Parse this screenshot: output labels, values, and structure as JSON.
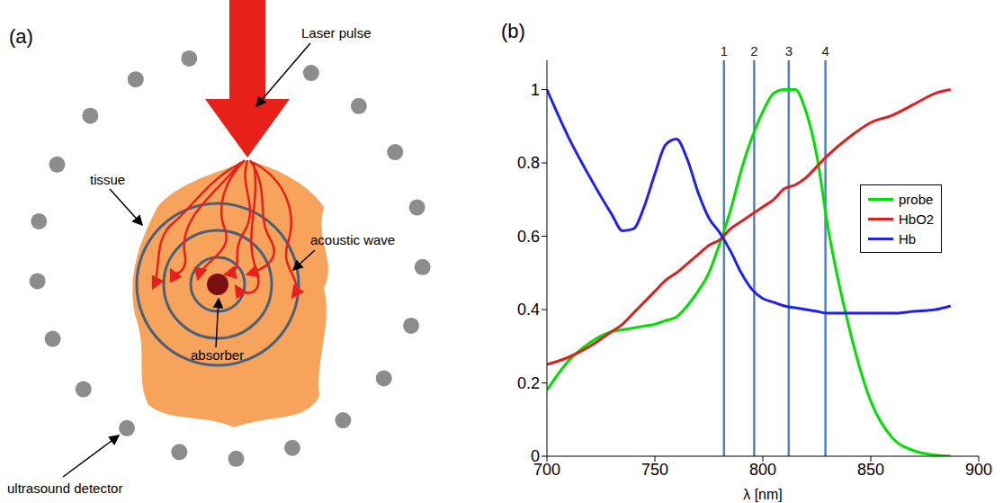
{
  "panel_a": {
    "label": "(a)",
    "labels": {
      "laser": "Laser pulse",
      "tissue": "tissue",
      "wave": "acoustic wave",
      "absorber": "absorber",
      "detector": "ultrasound detector"
    }
  },
  "chart_data": {
    "type": "line",
    "panel_label": "(b)",
    "x_label": "λ [nm]",
    "x": [
      700,
      710,
      720,
      730,
      735,
      740,
      745,
      750,
      755,
      760,
      765,
      770,
      775,
      780,
      785,
      790,
      795,
      800,
      805,
      810,
      815,
      820,
      825,
      830,
      840,
      850,
      860,
      870,
      880,
      887
    ],
    "series": [
      {
        "name": "probe",
        "color": "#00e000",
        "values": [
          0.18,
          0.26,
          0.31,
          0.34,
          0.345,
          0.35,
          0.355,
          0.36,
          0.37,
          0.38,
          0.41,
          0.45,
          0.5,
          0.58,
          0.67,
          0.78,
          0.87,
          0.94,
          0.99,
          1.0,
          1.0,
          0.94,
          0.82,
          0.63,
          0.35,
          0.15,
          0.05,
          0.015,
          0.003,
          0.0
        ]
      },
      {
        "name": "HbO2",
        "color": "#e02020",
        "values": [
          0.25,
          0.27,
          0.3,
          0.34,
          0.36,
          0.39,
          0.42,
          0.45,
          0.48,
          0.5,
          0.525,
          0.55,
          0.575,
          0.59,
          0.62,
          0.64,
          0.66,
          0.68,
          0.7,
          0.73,
          0.74,
          0.76,
          0.79,
          0.82,
          0.87,
          0.91,
          0.93,
          0.96,
          0.99,
          1.0
        ]
      },
      {
        "name": "Hb",
        "color": "#2020f0",
        "values": [
          1.0,
          0.87,
          0.76,
          0.66,
          0.615,
          0.62,
          0.68,
          0.77,
          0.85,
          0.865,
          0.81,
          0.72,
          0.65,
          0.61,
          0.56,
          0.5,
          0.455,
          0.43,
          0.42,
          0.41,
          0.405,
          0.4,
          0.395,
          0.39,
          0.39,
          0.39,
          0.39,
          0.395,
          0.4,
          0.41
        ]
      }
    ],
    "vlines": [
      {
        "x": 782,
        "label": "1"
      },
      {
        "x": 796,
        "label": "2"
      },
      {
        "x": 812,
        "label": "3"
      },
      {
        "x": 829,
        "label": "4"
      }
    ],
    "xlim": [
      700,
      900
    ],
    "xticks": [
      700,
      750,
      800,
      850,
      900
    ],
    "ylim": [
      0,
      1.08
    ],
    "yticks": [
      0,
      0.2,
      0.4,
      0.6,
      0.8,
      1
    ],
    "grid": false,
    "legend": "right"
  }
}
